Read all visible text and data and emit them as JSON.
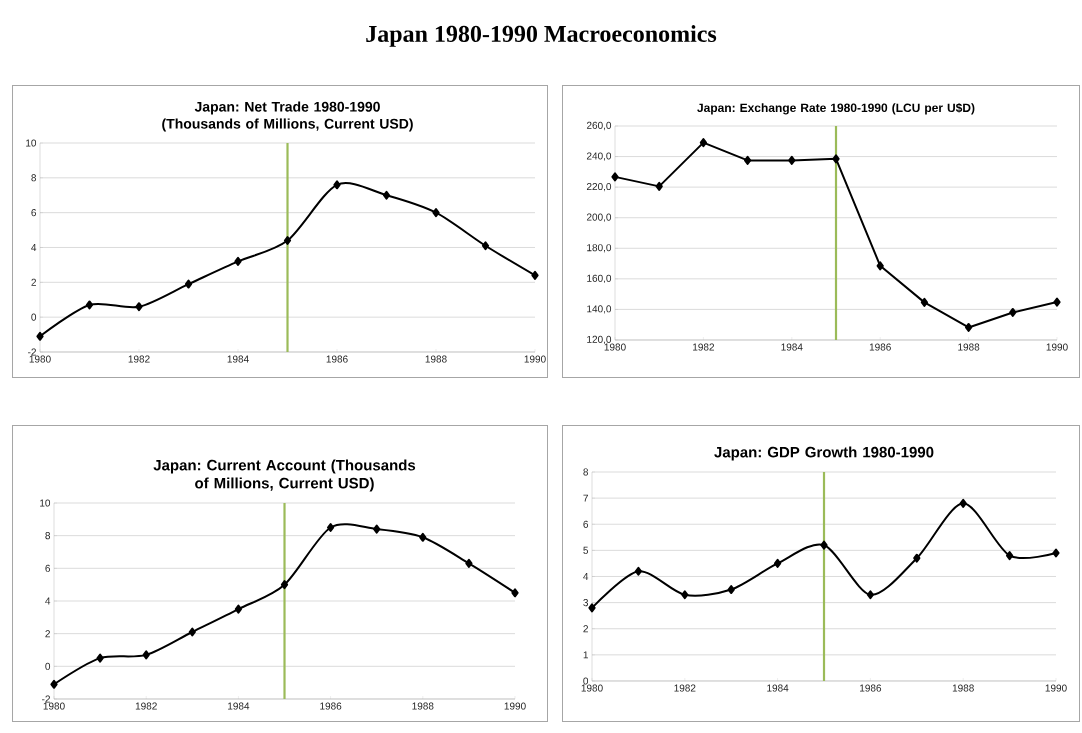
{
  "chart_data": [
    {
      "type": "other",
      "title": "Japan 1980-1990 Macroeconomics"
    },
    {
      "type": "line",
      "title": "Japan: Net Trade 1980-1990 (Thousands of Millions, Current USD)",
      "x": [
        1980,
        1981,
        1982,
        1983,
        1984,
        1985,
        1986,
        1987,
        1988,
        1989,
        1990
      ],
      "series": [
        {
          "color": "#000000",
          "values": [
            -1.1,
            0.7,
            0.6,
            1.9,
            3.2,
            4.4,
            7.6,
            7.0,
            6.0,
            4.1,
            2.4
          ]
        }
      ],
      "xlim": [
        1980,
        1990
      ],
      "xticks": [
        1980,
        1982,
        1984,
        1986,
        1988,
        1990
      ],
      "ylim": [
        -2,
        10
      ],
      "yticks": [
        -2,
        0,
        2,
        4,
        6,
        8,
        10
      ],
      "ref_lines": [
        {
          "axis": "x",
          "value": 1985,
          "color": "#9bbb59"
        }
      ],
      "grid": "y",
      "marker": "diamond"
    },
    {
      "type": "line",
      "title": "Japan: Exchange Rate 1980-1990 (LCU per U$D)",
      "x": [
        1980,
        1981,
        1982,
        1983,
        1984,
        1985,
        1986,
        1987,
        1988,
        1989,
        1990
      ],
      "series": [
        {
          "color": "#000000",
          "values": [
            226.7,
            220.5,
            249.1,
            237.5,
            237.5,
            238.5,
            168.5,
            144.6,
            128.2,
            138.0,
            144.8
          ]
        }
      ],
      "xlim": [
        1980,
        1990
      ],
      "xticks": [
        1980,
        1982,
        1984,
        1986,
        1988,
        1990
      ],
      "ylim": [
        120,
        260
      ],
      "yticks": [
        {
          "value": 120,
          "label": "120,0"
        },
        {
          "value": 140,
          "label": "140,0"
        },
        {
          "value": 160,
          "label": "160,0"
        },
        {
          "value": 180,
          "label": "180,0"
        },
        {
          "value": 200,
          "label": "200,0"
        },
        {
          "value": 220,
          "label": "220,0"
        },
        {
          "value": 240,
          "label": "240,0"
        },
        {
          "value": 260,
          "label": "260,0"
        }
      ],
      "ref_lines": [
        {
          "axis": "x",
          "value": 1985,
          "color": "#9bbb59"
        }
      ],
      "grid": "y",
      "marker": "diamond"
    },
    {
      "type": "line",
      "title": "Japan: Current Account (Thousands of Millions, Current USD)",
      "x": [
        1980,
        1981,
        1982,
        1983,
        1984,
        1985,
        1986,
        1987,
        1988,
        1989,
        1990
      ],
      "series": [
        {
          "color": "#000000",
          "values": [
            -1.1,
            0.5,
            0.7,
            2.1,
            3.5,
            5.0,
            8.5,
            8.4,
            7.9,
            6.3,
            4.5
          ]
        }
      ],
      "xlim": [
        1980,
        1990
      ],
      "xticks": [
        1980,
        1982,
        1984,
        1986,
        1988,
        1990
      ],
      "ylim": [
        -2,
        10
      ],
      "yticks": [
        -2,
        0,
        2,
        4,
        6,
        8,
        10
      ],
      "ref_lines": [
        {
          "axis": "x",
          "value": 1985,
          "color": "#9bbb59"
        }
      ],
      "grid": "y",
      "marker": "diamond"
    },
    {
      "type": "line",
      "title": "Japan: GDP Growth 1980-1990",
      "x": [
        1980,
        1981,
        1982,
        1983,
        1984,
        1985,
        1986,
        1987,
        1988,
        1989,
        1990
      ],
      "series": [
        {
          "color": "#000000",
          "values": [
            2.8,
            4.2,
            3.3,
            3.5,
            4.5,
            5.2,
            3.3,
            4.7,
            6.8,
            4.8,
            4.9
          ]
        }
      ],
      "xlim": [
        1980,
        1990
      ],
      "xticks": [
        1980,
        1982,
        1984,
        1986,
        1988,
        1990
      ],
      "ylim": [
        0,
        8
      ],
      "yticks": [
        0,
        1,
        2,
        3,
        4,
        5,
        6,
        7,
        8
      ],
      "ref_lines": [
        {
          "axis": "x",
          "value": 1985,
          "color": "#9bbb59"
        }
      ],
      "grid": "y",
      "marker": "diamond"
    }
  ]
}
